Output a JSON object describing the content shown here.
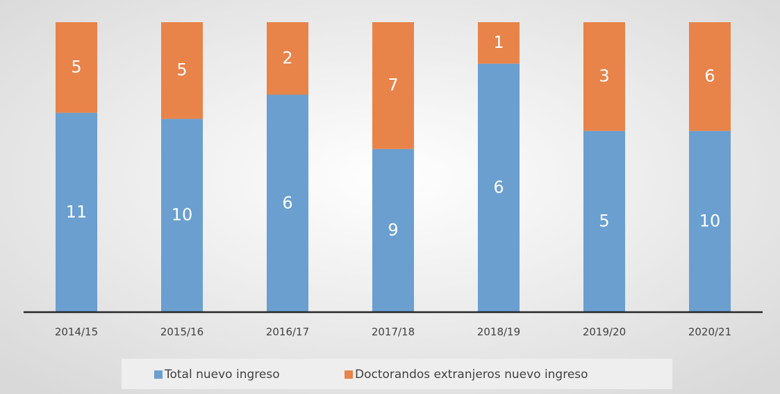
{
  "chart_data": {
    "type": "bar",
    "stacking": "percent",
    "legend": "bottom",
    "categories": [
      "2014/15",
      "2015/16",
      "2016/17",
      "2017/18",
      "2018/19",
      "2019/20",
      "2020/21"
    ],
    "series": [
      {
        "name": "Total nuevo ingreso",
        "color": "#6a9fd0",
        "values": [
          11,
          10,
          6,
          9,
          6,
          5,
          10
        ]
      },
      {
        "name": "Doctorandos extranjeros nuevo ingreso",
        "color": "#e8834a",
        "values": [
          5,
          5,
          2,
          7,
          1,
          3,
          6
        ]
      }
    ]
  }
}
